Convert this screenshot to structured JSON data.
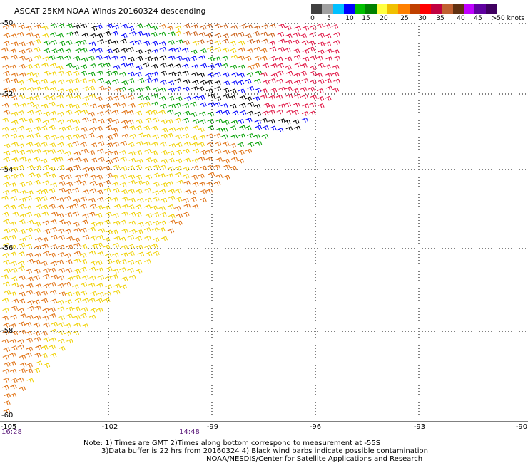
{
  "title": "ASCAT 25KM NOAA Winds 20160324 descending",
  "legend": {
    "colors": [
      "#404040",
      "#a0a0a0",
      "#00c0ff",
      "#0000ff",
      "#00c000",
      "#008000",
      "#ffff40",
      "#f0c000",
      "#ff8000",
      "#c04000",
      "#ff0000",
      "#c00040",
      "#c06030",
      "#603010",
      "#c000ff",
      "#6000a0",
      "#400060"
    ],
    "labels": [
      "0",
      "5",
      "10",
      "15",
      "20",
      "25",
      "30",
      "35",
      "40",
      "45",
      ">50 knots"
    ]
  },
  "lat_labels": [
    "-50",
    "-52",
    "-54",
    "-56",
    "-58",
    "-60"
  ],
  "lon_labels": [
    "-105",
    "-102",
    "-99",
    "-96",
    "-93",
    "-90"
  ],
  "times": [
    "16:28",
    "14:48"
  ],
  "notes": [
    "Note: 1) Times are GMT 2)Times along bottom correspond to measurement at -55S",
    "3)Data buffer is 22 hrs from 20160324 4) Black wind barbs indicate possible contamination",
    "NOAA/NESDIS/Center for Satellite Applications and Research"
  ]
}
